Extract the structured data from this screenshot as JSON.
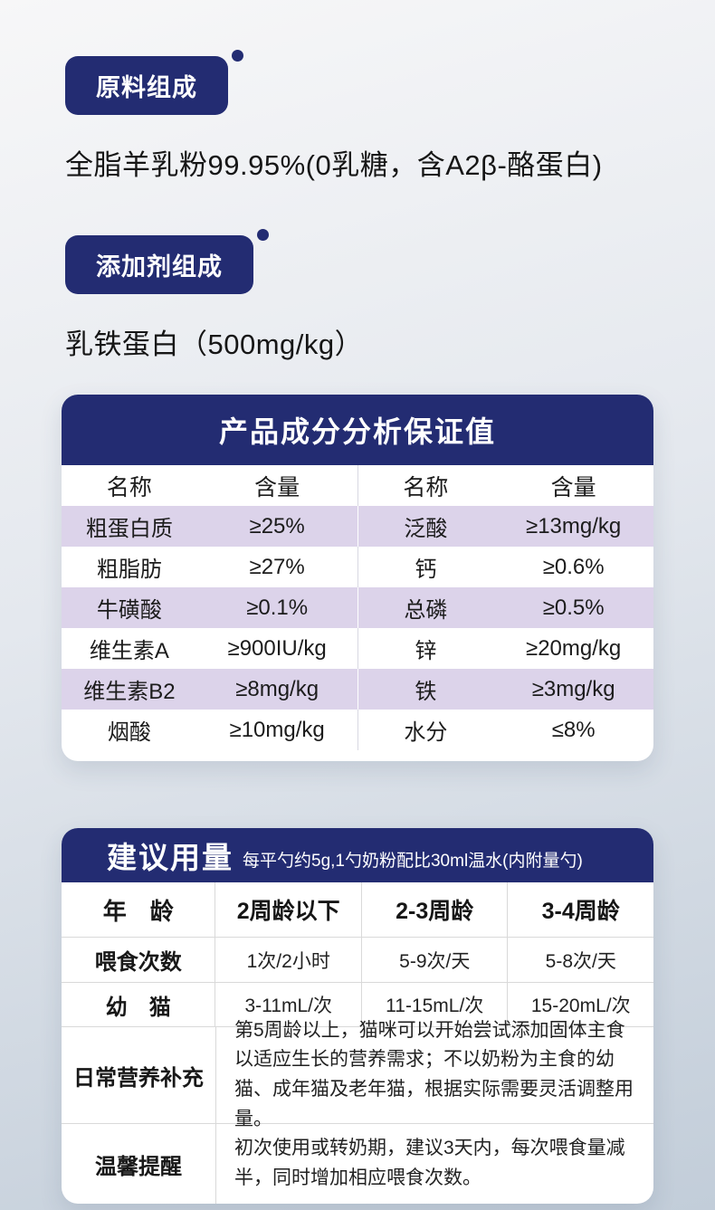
{
  "colors": {
    "navy": "#232c72",
    "purple_row": "#dcd3ea",
    "card_background": "#ffffff",
    "page_gradient_top": "#f7f7f8",
    "page_gradient_bottom": "#c2cdd9"
  },
  "sections": {
    "raw_material": {
      "badge": "原料组成",
      "text": "全脂羊乳粉99.95%(0乳糖，含A2β-酪蛋白)"
    },
    "additive": {
      "badge": "添加剂组成",
      "text": "乳铁蛋白（500mg/kg）"
    }
  },
  "analysis_table": {
    "title": "产品成分分析保证值",
    "headers": [
      "名称",
      "含量",
      "名称",
      "含量"
    ],
    "rows": [
      [
        "粗蛋白质",
        "≥25%",
        "泛酸",
        "≥13mg/kg"
      ],
      [
        "粗脂肪",
        "≥27%",
        "钙",
        "≥0.6%"
      ],
      [
        "牛磺酸",
        "≥0.1%",
        "总磷",
        "≥0.5%"
      ],
      [
        "维生素A",
        "≥900IU/kg",
        "锌",
        "≥20mg/kg"
      ],
      [
        "维生素B2",
        "≥8mg/kg",
        "铁",
        "≥3mg/kg"
      ],
      [
        "烟酸",
        "≥10mg/kg",
        "水分",
        "≤8%"
      ]
    ]
  },
  "dosage_table": {
    "title": "建议用量",
    "subtitle": "每平勺约5g,1勺奶粉配比30ml温水(内附量勺)",
    "header_row": [
      "年　龄",
      "2周龄以下",
      "2-3周龄",
      "3-4周龄"
    ],
    "rows": [
      [
        "喂食次数",
        "1次/2小时",
        "5-9次/天",
        "5-8次/天"
      ],
      [
        "幼　猫",
        "3-11mL/次",
        "11-15mL/次",
        "15-20mL/次"
      ]
    ],
    "notes": [
      {
        "label": "日常营养补充",
        "text": "第5周龄以上，猫咪可以开始尝试添加固体主食以适应生长的营养需求；不以奶粉为主食的幼猫、成年猫及老年猫，根据实际需要灵活调整用量。"
      },
      {
        "label": "温馨提醒",
        "text": "初次使用或转奶期，建议3天内，每次喂食量减半，同时增加相应喂食次数。"
      }
    ]
  }
}
